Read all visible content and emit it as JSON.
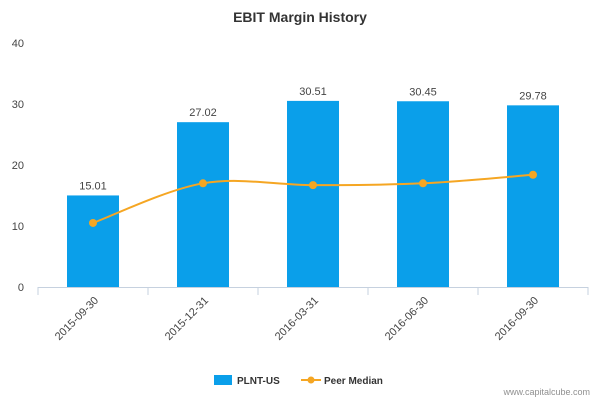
{
  "chart_data": {
    "type": "bar",
    "title": "EBIT Margin History",
    "categories": [
      "2015-09-30",
      "2015-12-31",
      "2016-03-31",
      "2016-06-30",
      "2016-09-30"
    ],
    "series": [
      {
        "name": "PLNT-US",
        "type": "bar",
        "color": "#0a9fea",
        "values": [
          15.01,
          27.02,
          30.51,
          30.45,
          29.78
        ],
        "data_labels": [
          "15.01",
          "27.02",
          "30.51",
          "30.45",
          "29.78"
        ]
      },
      {
        "name": "Peer Median",
        "type": "line",
        "color": "#f5a623",
        "values": [
          10.5,
          17.0,
          16.7,
          17.0,
          18.4
        ]
      }
    ],
    "ylim": [
      0,
      40
    ],
    "yticks": [
      0,
      10,
      20,
      30,
      40
    ],
    "grid": false,
    "legend": "bottom-center"
  },
  "watermark": "www.capitalcube.com"
}
